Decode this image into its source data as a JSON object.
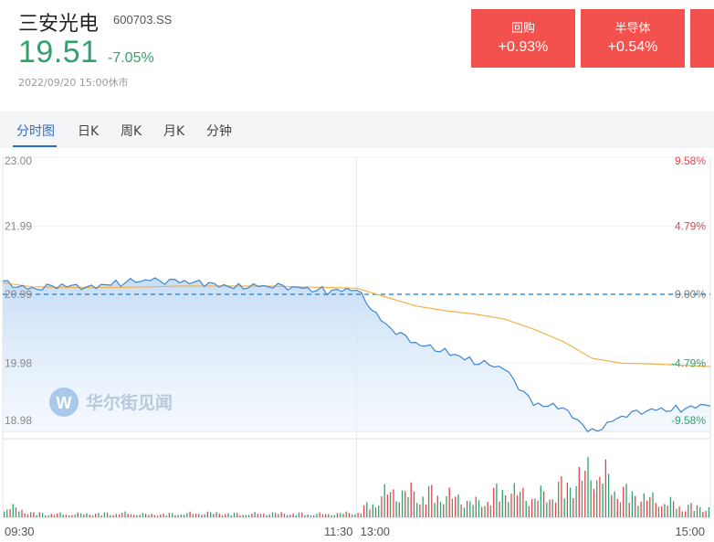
{
  "header": {
    "name": "三安光电",
    "code": "600703.SS",
    "price": "19.51",
    "change_pct": "-7.05%",
    "timestamp": "2022/09/20 15:00休市"
  },
  "tags": [
    {
      "name": "回购",
      "value": "+0.93%"
    },
    {
      "name": "半导体",
      "value": "+0.54%"
    }
  ],
  "tabs": [
    {
      "label": "分时图",
      "active": true
    },
    {
      "label": "日K",
      "active": false
    },
    {
      "label": "周K",
      "active": false
    },
    {
      "label": "月K",
      "active": false
    },
    {
      "label": "分钟",
      "active": false
    }
  ],
  "watermark": "华尔街见闻",
  "chart_data": {
    "type": "line",
    "y_labels_left": [
      "23.00",
      "21.99",
      "20.99",
      "19.98",
      "18.98"
    ],
    "y_labels_right": [
      "9.58%",
      "4.79%",
      "0.00%",
      "-4.79%",
      "-9.58%"
    ],
    "y_range": [
      18.98,
      23.0
    ],
    "prev_close": 20.99,
    "x_labels": [
      "09:30",
      "11:30",
      "13:00",
      "15:00"
    ],
    "x": [
      0,
      10,
      20,
      30,
      40,
      50,
      60,
      70,
      80,
      90,
      100,
      110,
      120,
      130,
      140,
      150,
      160,
      170,
      180,
      190,
      200,
      210,
      220,
      230,
      240
    ],
    "series": [
      {
        "name": "",
        "color": "#3d85d1",
        "values": [
          21.16,
          21.08,
          21.1,
          21.12,
          21.15,
          21.2,
          21.19,
          21.12,
          21.12,
          21.1,
          21.1,
          21.04,
          21.04,
          20.55,
          20.25,
          20.17,
          20.0,
          19.9,
          19.4,
          19.3,
          18.98,
          19.2,
          19.3,
          19.32,
          19.35
        ]
      },
      {
        "name": "",
        "color": "#f0b24a",
        "values": [
          21.16,
          21.1,
          21.09,
          21.09,
          21.09,
          21.1,
          21.11,
          21.11,
          21.11,
          21.11,
          21.1,
          21.09,
          21.08,
          20.95,
          20.82,
          20.75,
          20.7,
          20.63,
          20.48,
          20.3,
          20.05,
          19.98,
          19.97,
          19.95,
          19.93
        ]
      }
    ],
    "volume": [
      28,
      10,
      8,
      9,
      10,
      7,
      9,
      11,
      8,
      10,
      9,
      8,
      12,
      62,
      60,
      55,
      35,
      70,
      48,
      75,
      120,
      62,
      44,
      28,
      22
    ]
  }
}
